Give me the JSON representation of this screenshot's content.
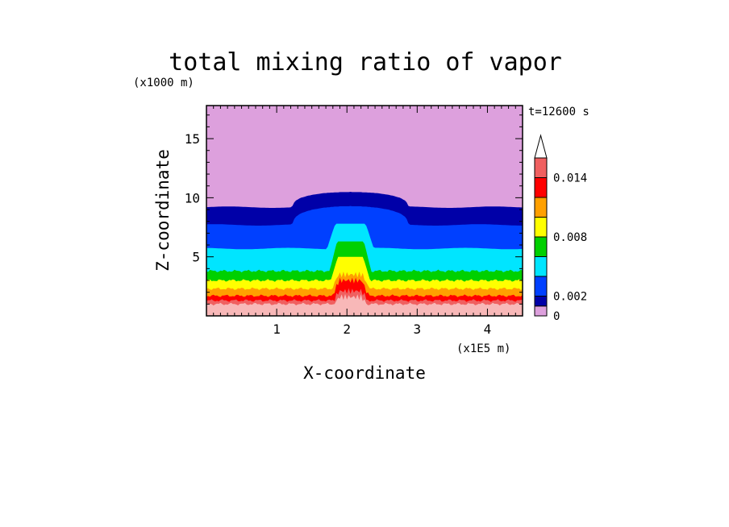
{
  "chart_data": {
    "type": "heatmap",
    "title": "total mixing ratio of vapor",
    "time_label": "t=12600 s",
    "xlabel": "X-coordinate",
    "ylabel": "Z-coordinate",
    "x_unit": "(x1E5 m)",
    "y_unit": "(x1000 m)",
    "xlim": [
      0,
      4.5
    ],
    "ylim": [
      0,
      17.8
    ],
    "x_ticks": [
      1,
      2,
      3,
      4
    ],
    "y_ticks": [
      5,
      10,
      15
    ],
    "x_tick_labels": [
      "1",
      "2",
      "3",
      "4"
    ],
    "y_tick_labels": [
      "5",
      "10",
      "15"
    ],
    "colorbar": {
      "levels": [
        0,
        0.001,
        0.002,
        0.004,
        0.006,
        0.008,
        0.01,
        0.012,
        0.014,
        0.016
      ],
      "colors": [
        "#dda0dd",
        "#0000a8",
        "#0040ff",
        "#00e5ff",
        "#00d000",
        "#ffff00",
        "#ffa000",
        "#ff0000",
        "#f06060",
        "#f8b8b8"
      ],
      "tick_values": [
        0,
        0.002,
        0.008,
        0.014
      ],
      "tick_labels": [
        "0",
        "0.002",
        "0.008",
        "0.014"
      ],
      "extend": "max"
    },
    "field": {
      "background_color": "#dda0dd",
      "layers": [
        {
          "level": 0.001,
          "color": "#0000a8",
          "env_top": 9.2,
          "cloud_top": 10.5
        },
        {
          "level": 0.002,
          "color": "#0040ff",
          "env_top": 7.7,
          "cloud_top": 9.3
        },
        {
          "level": 0.004,
          "color": "#00e5ff",
          "env_top": 5.7,
          "cloud_top": 7.8
        },
        {
          "level": 0.006,
          "color": "#00d000",
          "env_top": 3.8,
          "cloud_top": 6.3
        },
        {
          "level": 0.008,
          "color": "#ffff00",
          "env_top": 3.0,
          "cloud_top": 5.0
        },
        {
          "level": 0.01,
          "color": "#ffa000",
          "env_top": 2.3,
          "cloud_top": 3.5
        },
        {
          "level": 0.012,
          "color": "#ff0000",
          "env_top": 1.7,
          "cloud_top": 3.0
        },
        {
          "level": 0.014,
          "color": "#f06060",
          "env_top": 1.3,
          "cloud_top": 2.1
        },
        {
          "level": 0.016,
          "color": "#f8b8b8",
          "env_top": 1.0,
          "cloud_top": 1.6
        }
      ]
    }
  }
}
